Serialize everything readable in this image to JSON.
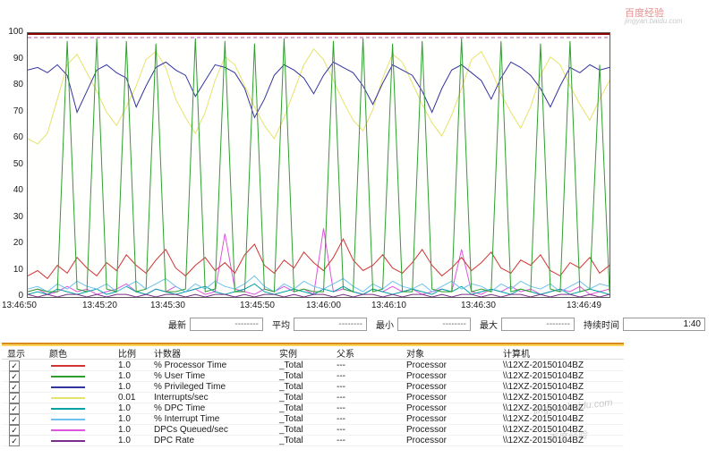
{
  "watermark": {
    "brand": "百度经验",
    "site": "jingyan.baidu.com"
  },
  "chart_data": {
    "type": "line",
    "title": "",
    "xlabel": "",
    "ylabel": "",
    "ylim": [
      0,
      100
    ],
    "grid": false,
    "legend_position": "table-below",
    "yticks": [
      100,
      90,
      80,
      70,
      60,
      50,
      40,
      30,
      20,
      10,
      0
    ],
    "xticks": [
      "13:46:50",
      "13:45:20",
      "13:45:30",
      "13:45:50",
      "13:46:00",
      "13:46:10",
      "13:46:30",
      "13:46:49"
    ],
    "overlays": [
      {
        "y": 100,
        "color": "#8b0000",
        "style": "solid"
      },
      {
        "y": 98.3,
        "color": "#b050b0",
        "style": "dashed"
      }
    ],
    "series": [
      {
        "name": "% Processor Time",
        "color": "#d23434",
        "values": [
          8,
          10,
          7,
          12,
          9,
          15,
          11,
          8,
          13,
          10,
          16,
          12,
          9,
          14,
          18,
          11,
          8,
          12,
          15,
          10,
          13,
          9,
          16,
          20,
          12,
          9,
          14,
          11,
          17,
          13,
          10,
          15,
          22,
          14,
          10,
          12,
          16,
          11,
          9,
          13,
          18,
          12,
          8,
          11,
          15,
          10,
          13,
          17,
          11,
          9,
          14,
          12,
          16,
          10,
          8,
          13,
          11,
          15,
          9,
          12
        ]
      },
      {
        "name": "% User Time",
        "color": "#2f9e2f",
        "values": [
          2,
          3,
          2,
          2,
          97,
          3,
          2,
          98,
          3,
          2,
          97,
          2,
          3,
          96,
          2,
          2,
          3,
          98,
          2,
          3,
          97,
          2,
          2,
          96,
          3,
          2,
          98,
          2,
          3,
          2,
          2,
          97,
          3,
          2,
          98,
          2,
          3,
          96,
          2,
          2,
          97,
          3,
          2,
          2,
          98,
          2,
          3,
          2,
          97,
          2,
          3,
          2,
          96,
          3,
          2,
          97,
          2,
          3,
          88,
          2
        ]
      },
      {
        "name": "% Privileged Time",
        "color": "#3434a0",
        "values": [
          86,
          87,
          85,
          88,
          84,
          70,
          78,
          86,
          88,
          85,
          83,
          72,
          80,
          87,
          89,
          86,
          84,
          76,
          82,
          88,
          87,
          85,
          79,
          68,
          75,
          84,
          88,
          86,
          83,
          77,
          84,
          89,
          87,
          85,
          80,
          73,
          81,
          88,
          86,
          84,
          78,
          70,
          79,
          86,
          88,
          85,
          82,
          75,
          83,
          89,
          87,
          84,
          79,
          72,
          80,
          87,
          85,
          88,
          86,
          87
        ]
      },
      {
        "name": "Interrupts/sec",
        "color": "#e6e36b",
        "values": [
          60,
          58,
          62,
          75,
          88,
          92,
          85,
          78,
          70,
          65,
          72,
          80,
          90,
          93,
          87,
          75,
          68,
          62,
          70,
          82,
          91,
          88,
          80,
          72,
          65,
          60,
          68,
          78,
          88,
          94,
          90,
          82,
          74,
          67,
          63,
          71,
          83,
          92,
          89,
          81,
          73,
          66,
          61,
          69,
          79,
          90,
          93,
          86,
          77,
          70,
          64,
          72,
          84,
          91,
          88,
          80,
          73,
          67,
          75,
          82
        ]
      },
      {
        "name": "% DPC Time",
        "color": "#00a3a3",
        "values": [
          1,
          2,
          1,
          3,
          2,
          1,
          2,
          3,
          1,
          2,
          4,
          2,
          1,
          3,
          2,
          1,
          2,
          3,
          4,
          2,
          1,
          2,
          3,
          5,
          2,
          1,
          2,
          3,
          2,
          1,
          3,
          2,
          4,
          2,
          1,
          3,
          2,
          1,
          2,
          3,
          2,
          1,
          3,
          2,
          4,
          1,
          2,
          3,
          2,
          1,
          3,
          2,
          1,
          2,
          3,
          1,
          2,
          3,
          2,
          1
        ]
      },
      {
        "name": "% Interrupt Time",
        "color": "#6fc2ef",
        "values": [
          3,
          4,
          2,
          5,
          3,
          6,
          4,
          3,
          5,
          2,
          4,
          6,
          3,
          5,
          7,
          4,
          2,
          5,
          3,
          6,
          4,
          3,
          5,
          8,
          4,
          2,
          5,
          3,
          6,
          4,
          3,
          5,
          7,
          4,
          2,
          5,
          3,
          6,
          4,
          3,
          5,
          2,
          4,
          6,
          3,
          5,
          4,
          2,
          5,
          3,
          6,
          4,
          3,
          5,
          2,
          4,
          6,
          3,
          5,
          4
        ]
      },
      {
        "name": "DPCs Queued/sec",
        "color": "#dd55dd",
        "values": [
          2,
          3,
          1,
          2,
          4,
          2,
          3,
          1,
          2,
          3,
          5,
          2,
          1,
          3,
          2,
          4,
          2,
          3,
          1,
          2,
          24,
          3,
          2,
          1,
          3,
          2,
          4,
          2,
          3,
          1,
          26,
          2,
          3,
          2,
          1,
          3,
          2,
          4,
          2,
          3,
          1,
          2,
          3,
          2,
          18,
          2,
          1,
          3,
          2,
          4,
          2,
          3,
          1,
          2,
          3,
          2,
          4,
          1,
          2,
          3
        ]
      },
      {
        "name": "DPC Rate",
        "color": "#7b2d8b",
        "values": [
          1,
          0,
          1,
          0,
          1,
          1,
          0,
          1,
          0,
          1,
          1,
          0,
          1,
          0,
          1,
          1,
          0,
          1,
          0,
          1,
          1,
          0,
          1,
          0,
          1,
          1,
          0,
          1,
          0,
          1,
          1,
          0,
          1,
          0,
          1,
          1,
          0,
          1,
          0,
          1,
          1,
          0,
          1,
          0,
          1,
          1,
          0,
          1,
          0,
          1,
          1,
          0,
          1,
          0,
          1,
          1,
          0,
          1,
          0,
          1
        ]
      }
    ]
  },
  "stats": {
    "last_label": "最新",
    "last_value": "--------",
    "avg_label": "平均",
    "avg_value": "--------",
    "min_label": "最小",
    "min_value": "--------",
    "max_label": "最大",
    "max_value": "--------",
    "duration_label": "持续时间",
    "duration_value": "1:40"
  },
  "table": {
    "headers": [
      "显示",
      "颜色",
      "比例",
      "计数器",
      "实例",
      "父系",
      "对象",
      "计算机"
    ],
    "rows": [
      {
        "show": true,
        "color": "#d23434",
        "scale": "1.0",
        "counter": "% Processor Time",
        "instance": "_Total",
        "parent": "---",
        "object": "Processor",
        "computer": "\\\\12XZ-20150104BZ"
      },
      {
        "show": true,
        "color": "#2f9e2f",
        "scale": "1.0",
        "counter": "% User Time",
        "instance": "_Total",
        "parent": "---",
        "object": "Processor",
        "computer": "\\\\12XZ-20150104BZ"
      },
      {
        "show": true,
        "color": "#3434a0",
        "scale": "1.0",
        "counter": "% Privileged Time",
        "instance": "_Total",
        "parent": "---",
        "object": "Processor",
        "computer": "\\\\12XZ-20150104BZ"
      },
      {
        "show": true,
        "color": "#e6e36b",
        "scale": "0.01",
        "counter": "Interrupts/sec",
        "instance": "_Total",
        "parent": "---",
        "object": "Processor",
        "computer": "\\\\12XZ-20150104BZ"
      },
      {
        "show": true,
        "color": "#00a3a3",
        "scale": "1.0",
        "counter": "% DPC Time",
        "instance": "_Total",
        "parent": "---",
        "object": "Processor",
        "computer": "\\\\12XZ-20150104BZ"
      },
      {
        "show": true,
        "color": "#6fc2ef",
        "scale": "1.0",
        "counter": "% Interrupt Time",
        "instance": "_Total",
        "parent": "---",
        "object": "Processor",
        "computer": "\\\\12XZ-20150104BZ"
      },
      {
        "show": true,
        "color": "#dd55dd",
        "scale": "1.0",
        "counter": "DPCs Queued/sec",
        "instance": "_Total",
        "parent": "---",
        "object": "Processor",
        "computer": "\\\\12XZ-20150104BZ"
      },
      {
        "show": true,
        "color": "#7b2d8b",
        "scale": "1.0",
        "counter": "DPC Rate",
        "instance": "_Total",
        "parent": "---",
        "object": "Processor",
        "computer": "\\\\12XZ-20150104BZ"
      }
    ]
  }
}
